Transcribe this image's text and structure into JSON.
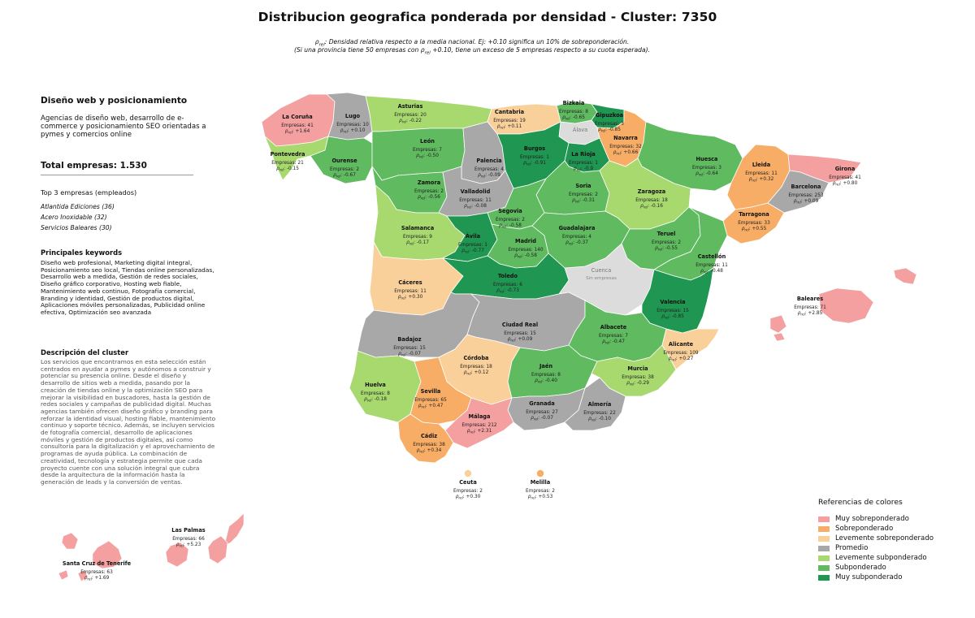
{
  "title": "Distribucion geografica ponderada por densidad - Cluster: 7350",
  "subtitle": {
    "rho_symbol": "ρ",
    "rho_sub": "rel",
    "line1_text": ": Densidad relativa respecto a la media nacional. Ej: +0.10 significa un 10% de sobreponderación.",
    "line2_pre": "(Si una provincia tiene 50 empresas con ",
    "line2_post": " +0.10, tiene un exceso de 5 empresas respecto a su cuota esperada)."
  },
  "panel": {
    "title": "Diseño web y posicionamiento",
    "description": "Agencias de diseño web, desarrollo de e-commerce y posicionamiento SEO orientadas a pymes y comercios online",
    "total_label": "Total empresas: 1.530",
    "top_label": "Top 3 empresas (empleados)",
    "top_companies": [
      "Atlantida Ediciones (36)",
      "Acero Inoxidable (32)",
      "Servicios Baleares (30)"
    ],
    "keywords_heading": "Principales keywords",
    "keywords": "Diseño web profesional, Marketing digital integral, Posicionamiento seo local, Tiendas online personalizadas, Desarrollo web a medida, Gestión de redes sociales, Diseño gráfico corporativo, Hosting web fiable, Mantenimiento web continuo, Fotografía comercial, Branding y identidad, Gestión de productos digital, Aplicaciones móviles personalizadas, Publicidad online efectiva, Optimización seo avanzada",
    "cluster_heading": "Descripción del cluster",
    "cluster_description": "Los servicios que encontramos en esta selección están centrados en ayudar a pymes y autónomos a construir y potenciar su presencia online. Desde el diseño y desarrollo de sitios web a medida, pasando por la creación de tiendas online y la optimización SEO para mejorar la visibilidad en buscadores, hasta la gestión de redes sociales y campañas de publicidad digital. Muchas agencias también ofrecen diseño gráfico y branding para reforzar la identidad visual, hosting fiable, mantenimiento continuo y soporte técnico. Además, se incluyen servicios de fotografía comercial, desarrollo de aplicaciones móviles y gestión de productos digitales, así como consultoría para la digitalización y el aprovechamiento de programas de ayuda pública. La combinación de creatividad, tecnología y estrategia permite que cada proyecto cuente con una solución integral que cubra desde la arquitectura de la información hasta la generación de leads y la conversión de ventas."
  },
  "legend": {
    "title": "Referencias de colores",
    "items": [
      {
        "label": "Muy sobreponderado",
        "color": "#f4a0a0"
      },
      {
        "label": "Sobreponderado",
        "color": "#f7ad66"
      },
      {
        "label": "Levemente sobreponderado",
        "color": "#fad09a"
      },
      {
        "label": "Promedio",
        "color": "#a8a8a8"
      },
      {
        "label": "Levemente subponderado",
        "color": "#a8d96e"
      },
      {
        "label": "Subponderado",
        "color": "#5fba60"
      },
      {
        "label": "Muy subponderado",
        "color": "#1f9651"
      }
    ]
  },
  "map": {
    "empresas_prefix": "Empresas: ",
    "provinces": [
      {
        "name": "La Coruña",
        "empresas": "41",
        "rho": "+1.64",
        "category": "Muy sobreponderado"
      },
      {
        "name": "Lugo",
        "empresas": "10",
        "rho": "+0.10",
        "category": "Promedio"
      },
      {
        "name": "Asturias",
        "empresas": "20",
        "rho": "-0.22",
        "category": "Levemente subponderado"
      },
      {
        "name": "Cantabria",
        "empresas": "19",
        "rho": "+0.11",
        "category": "Levemente sobreponderado"
      },
      {
        "name": "Bizkaia",
        "empresas": "8",
        "rho": "-0.65",
        "category": "Subponderado"
      },
      {
        "name": "Gipuzkoa",
        "empresas": "3",
        "rho": "-0.85",
        "category": "Muy subponderado"
      },
      {
        "name": "Navarra",
        "empresas": "32",
        "rho": "+0.66",
        "category": "Sobreponderado"
      },
      {
        "name": "Pontevedra",
        "empresas": "21",
        "rho": "-0.15",
        "category": "Levemente subponderado"
      },
      {
        "name": "Ourense",
        "empresas": "2",
        "rho": "-0.67",
        "category": "Subponderado"
      },
      {
        "name": "León",
        "empresas": "7",
        "rho": "-0.50",
        "category": "Subponderado"
      },
      {
        "name": "Palencia",
        "empresas": "4",
        "rho": "-0.09",
        "category": "Promedio"
      },
      {
        "name": "Burgos",
        "empresas": "1",
        "rho": "-0.91",
        "category": "Muy subponderado"
      },
      {
        "name": "La Rioja",
        "empresas": "1",
        "rho": "-0.9",
        "category": "Muy subponderado"
      },
      {
        "name": "Huesca",
        "empresas": "3",
        "rho": "-0.64",
        "category": "Subponderado"
      },
      {
        "name": "Lleida",
        "empresas": "11",
        "rho": "+0.32",
        "category": "Sobreponderado"
      },
      {
        "name": "Girona",
        "empresas": "41",
        "rho": "+0.80",
        "category": "Muy sobreponderado"
      },
      {
        "name": "Barcelona",
        "empresas": "253",
        "rho": "+0.09",
        "category": "Promedio"
      },
      {
        "name": "Zamora",
        "empresas": "2",
        "rho": "-0.56",
        "category": "Subponderado"
      },
      {
        "name": "Valladolid",
        "empresas": "11",
        "rho": "-0.08",
        "category": "Promedio"
      },
      {
        "name": "Soria",
        "empresas": "2",
        "rho": "-0.31",
        "category": "Subponderado"
      },
      {
        "name": "Zaragoza",
        "empresas": "18",
        "rho": "-0.16",
        "category": "Levemente subponderado"
      },
      {
        "name": "Tarragona",
        "empresas": "33",
        "rho": "+0.55",
        "category": "Sobreponderado"
      },
      {
        "name": "Salamanca",
        "empresas": "9",
        "rho": "-0.17",
        "category": "Levemente subponderado"
      },
      {
        "name": "Segovia",
        "empresas": "2",
        "rho": "-0.58",
        "category": "Subponderado"
      },
      {
        "name": "Ávila",
        "empresas": "1",
        "rho": "-0.77",
        "category": "Muy subponderado"
      },
      {
        "name": "Madrid",
        "empresas": "140",
        "rho": "-0.58",
        "category": "Subponderado"
      },
      {
        "name": "Guadalajara",
        "empresas": "4",
        "rho": "-0.37",
        "category": "Subponderado"
      },
      {
        "name": "Teruel",
        "empresas": "2",
        "rho": "-0.55",
        "category": "Subponderado"
      },
      {
        "name": "Castellón",
        "empresas": "11",
        "rho": "-0.48",
        "category": "Subponderado"
      },
      {
        "name": "Cáceres",
        "empresas": "11",
        "rho": "+0.30",
        "category": "Levemente sobreponderado"
      },
      {
        "name": "Toledo",
        "empresas": "6",
        "rho": "-0.73",
        "category": "Muy subponderado"
      },
      {
        "name": "Valencia",
        "empresas": "15",
        "rho": "-0.85",
        "category": "Muy subponderado"
      },
      {
        "name": "Badajoz",
        "empresas": "15",
        "rho": "-0.07",
        "category": "Promedio"
      },
      {
        "name": "Ciudad Real",
        "empresas": "15",
        "rho": "+0.09",
        "category": "Promedio"
      },
      {
        "name": "Albacete",
        "empresas": "7",
        "rho": "-0.47",
        "category": "Subponderado"
      },
      {
        "name": "Alicante",
        "empresas": "109",
        "rho": "+0.27",
        "category": "Levemente sobreponderado"
      },
      {
        "name": "Córdoba",
        "empresas": "18",
        "rho": "+0.12",
        "category": "Levemente sobreponderado"
      },
      {
        "name": "Jaén",
        "empresas": "8",
        "rho": "-0.40",
        "category": "Subponderado"
      },
      {
        "name": "Murcia",
        "empresas": "38",
        "rho": "-0.29",
        "category": "Levemente subponderado"
      },
      {
        "name": "Huelva",
        "empresas": "8",
        "rho": "-0.18",
        "category": "Levemente subponderado"
      },
      {
        "name": "Sevilla",
        "empresas": "65",
        "rho": "+0.47",
        "category": "Sobreponderado"
      },
      {
        "name": "Granada",
        "empresas": "27",
        "rho": "-0.07",
        "category": "Promedio"
      },
      {
        "name": "Almería",
        "empresas": "22",
        "rho": "-0.10",
        "category": "Promedio"
      },
      {
        "name": "Málaga",
        "empresas": "212",
        "rho": "+2.31",
        "category": "Muy sobreponderado"
      },
      {
        "name": "Cádiz",
        "empresas": "38",
        "rho": "+0.34",
        "category": "Sobreponderado"
      },
      {
        "name": "Baleares",
        "empresas": "71",
        "rho": "+2.85",
        "category": "Muy sobreponderado"
      },
      {
        "name": "Ceuta",
        "empresas": "2",
        "rho": "+0.30",
        "category": "Levemente sobreponderado"
      },
      {
        "name": "Melilla",
        "empresas": "2",
        "rho": "+0.53",
        "category": "Sobreponderado"
      },
      {
        "name": "Las Palmas",
        "empresas": "66",
        "rho": "+5.23",
        "category": "Muy sobreponderado"
      },
      {
        "name": "Santa Cruz de Tenerife",
        "empresas": "63",
        "rho": "+1.69",
        "category": "Muy sobreponderado"
      }
    ],
    "no_data_color": "#dcdcdc",
    "no_data_regions": [
      {
        "name": "Álava",
        "sub": ""
      },
      {
        "name": "Cuenca",
        "sub": "Sin empresas"
      }
    ]
  }
}
